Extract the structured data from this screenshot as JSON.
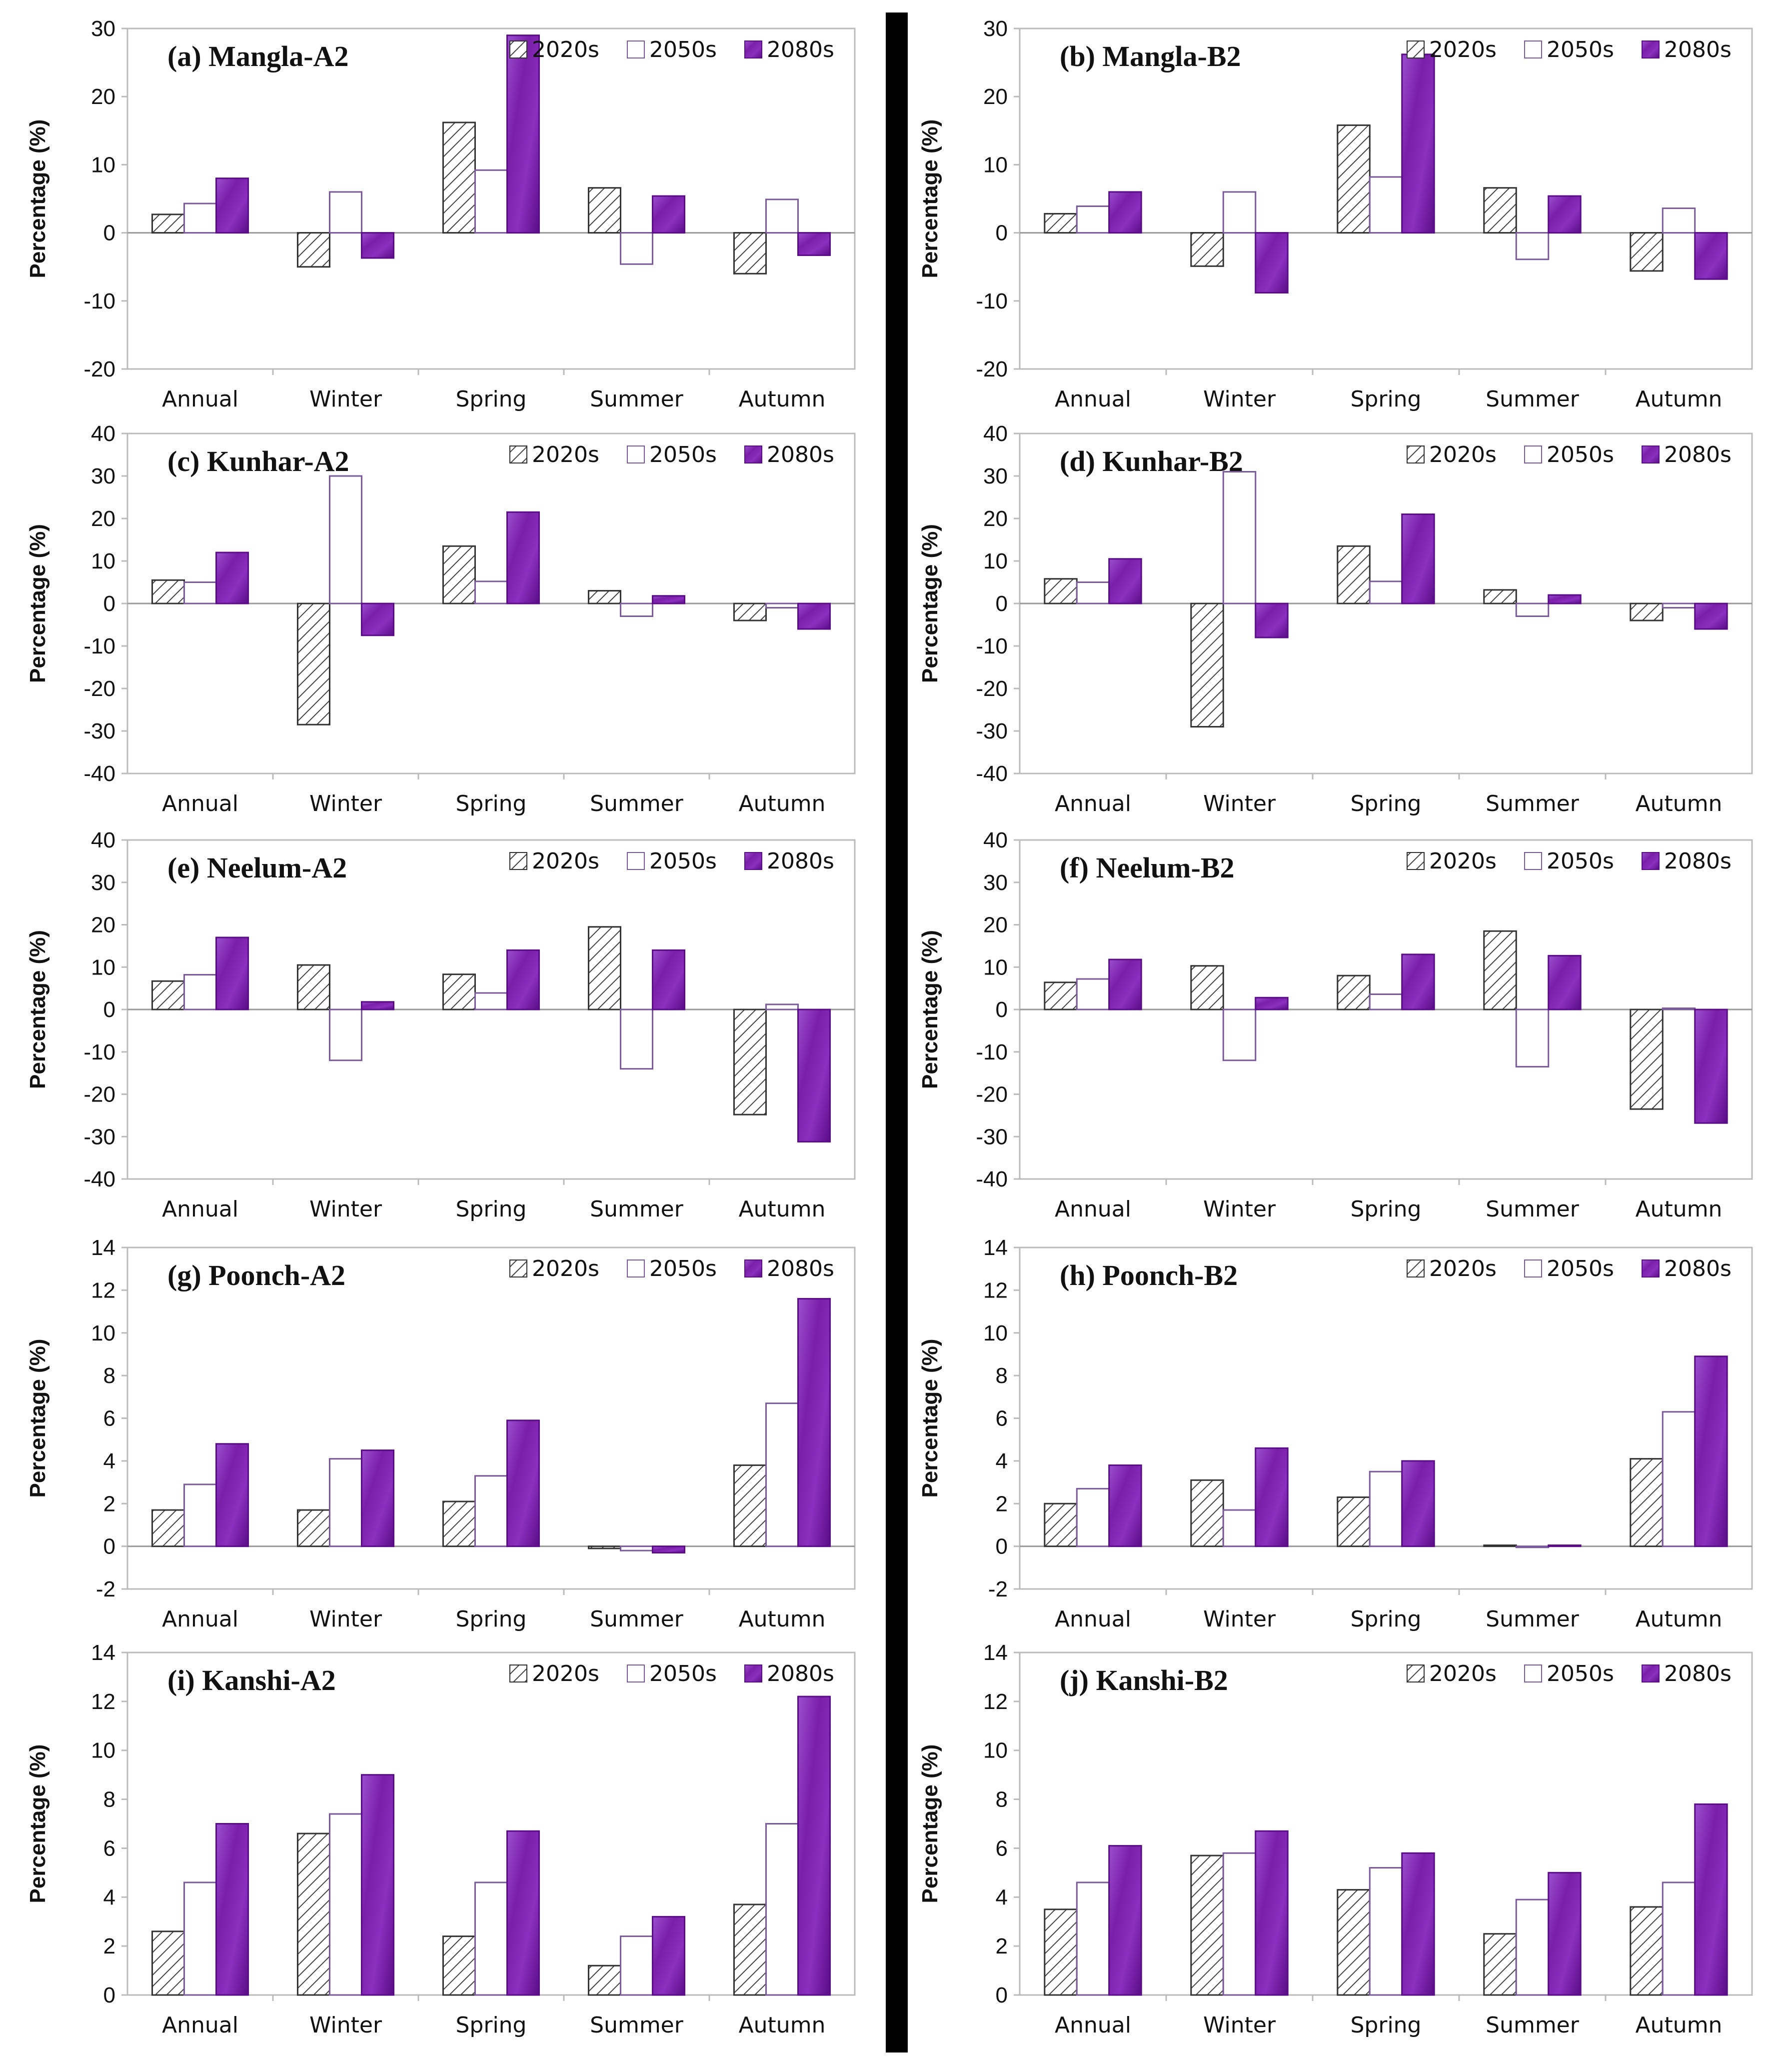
{
  "figure": {
    "legend": [
      "2020s",
      "2050s",
      "2080s"
    ],
    "categories": [
      "Annual",
      "Winter",
      "Spring",
      "Summer",
      "Autumn"
    ],
    "ylabel": "Percentage (%)",
    "colors": {
      "s2080": "#7a1fa8",
      "s2080_dark": "#5a0d86",
      "s2080_light": "#9b4fd0",
      "hatch": "#444444",
      "axis": "#bbbbbb",
      "divider": "#000000"
    }
  },
  "chart_data": [
    {
      "type": "bar",
      "title": "(a) Mangla-A2",
      "xlabel": "",
      "ylabel": "Percentage (%)",
      "ylim": [
        -20,
        30
      ],
      "yticks": [
        -20,
        -10,
        0,
        10,
        20,
        30
      ],
      "categories": [
        "Annual",
        "Winter",
        "Spring",
        "Summer",
        "Autumn"
      ],
      "series": [
        {
          "name": "2020s",
          "values": [
            2.7,
            -5.0,
            16.2,
            6.6,
            -6.0
          ]
        },
        {
          "name": "2050s",
          "values": [
            4.3,
            6.0,
            9.2,
            -4.6,
            4.9
          ]
        },
        {
          "name": "2080s",
          "values": [
            8.0,
            -3.7,
            29.0,
            5.4,
            -3.3
          ]
        }
      ]
    },
    {
      "type": "bar",
      "title": "(b) Mangla-B2",
      "xlabel": "",
      "ylabel": "Percentage (%)",
      "ylim": [
        -20,
        30
      ],
      "yticks": [
        -20,
        -10,
        0,
        10,
        20,
        30
      ],
      "categories": [
        "Annual",
        "Winter",
        "Spring",
        "Summer",
        "Autumn"
      ],
      "series": [
        {
          "name": "2020s",
          "values": [
            2.8,
            -4.9,
            15.8,
            6.6,
            -5.6
          ]
        },
        {
          "name": "2050s",
          "values": [
            3.9,
            6.0,
            8.2,
            -3.9,
            3.6
          ]
        },
        {
          "name": "2080s",
          "values": [
            6.0,
            -8.8,
            26.2,
            5.4,
            -6.8
          ]
        }
      ]
    },
    {
      "type": "bar",
      "title": "(c) Kunhar-A2",
      "xlabel": "",
      "ylabel": "Percentage (%)",
      "ylim": [
        -40,
        40
      ],
      "yticks": [
        -40,
        -30,
        -20,
        -10,
        0,
        10,
        20,
        30,
        40
      ],
      "categories": [
        "Annual",
        "Winter",
        "Spring",
        "Summer",
        "Autumn"
      ],
      "series": [
        {
          "name": "2020s",
          "values": [
            5.5,
            -28.5,
            13.5,
            3.0,
            -4.0
          ]
        },
        {
          "name": "2050s",
          "values": [
            5.0,
            30.0,
            5.2,
            -3.0,
            -1.0
          ]
        },
        {
          "name": "2080s",
          "values": [
            12.0,
            -7.5,
            21.5,
            1.8,
            -6.0
          ]
        }
      ]
    },
    {
      "type": "bar",
      "title": "(d) Kunhar-B2",
      "xlabel": "",
      "ylabel": "Percentage (%)",
      "ylim": [
        -40,
        40
      ],
      "yticks": [
        -40,
        -30,
        -20,
        -10,
        0,
        10,
        20,
        30,
        40
      ],
      "categories": [
        "Annual",
        "Winter",
        "Spring",
        "Summer",
        "Autumn"
      ],
      "series": [
        {
          "name": "2020s",
          "values": [
            5.8,
            -29.0,
            13.5,
            3.2,
            -4.0
          ]
        },
        {
          "name": "2050s",
          "values": [
            5.0,
            31.0,
            5.2,
            -3.0,
            -1.0
          ]
        },
        {
          "name": "2080s",
          "values": [
            10.5,
            -8.0,
            21.0,
            2.0,
            -6.0
          ]
        }
      ]
    },
    {
      "type": "bar",
      "title": "(e) Neelum-A2",
      "xlabel": "",
      "ylabel": "Percentage (%)",
      "ylim": [
        -40,
        40
      ],
      "yticks": [
        -40,
        -30,
        -20,
        -10,
        0,
        10,
        20,
        30,
        40
      ],
      "categories": [
        "Annual",
        "Winter",
        "Spring",
        "Summer",
        "Autumn"
      ],
      "series": [
        {
          "name": "2020s",
          "values": [
            6.7,
            10.5,
            8.3,
            19.5,
            -24.8
          ]
        },
        {
          "name": "2050s",
          "values": [
            8.2,
            -12.0,
            3.9,
            -14.0,
            1.2
          ]
        },
        {
          "name": "2080s",
          "values": [
            17.0,
            1.8,
            14.0,
            14.0,
            -31.2
          ]
        }
      ]
    },
    {
      "type": "bar",
      "title": "(f) Neelum-B2",
      "xlabel": "",
      "ylabel": "Percentage (%)",
      "ylim": [
        -40,
        40
      ],
      "yticks": [
        -40,
        -30,
        -20,
        -10,
        0,
        10,
        20,
        30,
        40
      ],
      "categories": [
        "Annual",
        "Winter",
        "Spring",
        "Summer",
        "Autumn"
      ],
      "series": [
        {
          "name": "2020s",
          "values": [
            6.4,
            10.3,
            8.0,
            18.5,
            -23.5
          ]
        },
        {
          "name": "2050s",
          "values": [
            7.2,
            -12.0,
            3.6,
            -13.5,
            0.3
          ]
        },
        {
          "name": "2080s",
          "values": [
            11.8,
            2.8,
            13.0,
            12.7,
            -26.8
          ]
        }
      ]
    },
    {
      "type": "bar",
      "title": "(g) Poonch-A2",
      "xlabel": "",
      "ylabel": "Percentage (%)",
      "ylim": [
        -2,
        14
      ],
      "yticks": [
        -2,
        0,
        2,
        4,
        6,
        8,
        10,
        12,
        14
      ],
      "categories": [
        "Annual",
        "Winter",
        "Spring",
        "Summer",
        "Autumn"
      ],
      "series": [
        {
          "name": "2020s",
          "values": [
            1.7,
            1.7,
            2.1,
            -0.1,
            3.8
          ]
        },
        {
          "name": "2050s",
          "values": [
            2.9,
            4.1,
            3.3,
            -0.2,
            6.7
          ]
        },
        {
          "name": "2080s",
          "values": [
            4.8,
            4.5,
            5.9,
            -0.3,
            11.6
          ]
        }
      ]
    },
    {
      "type": "bar",
      "title": "(h)  Poonch-B2",
      "xlabel": "",
      "ylabel": "Percentage (%)",
      "ylim": [
        -2,
        14
      ],
      "yticks": [
        -2,
        0,
        2,
        4,
        6,
        8,
        10,
        12,
        14
      ],
      "categories": [
        "Annual",
        "Winter",
        "Spring",
        "Summer",
        "Autumn"
      ],
      "series": [
        {
          "name": "2020s",
          "values": [
            2.0,
            3.1,
            2.3,
            0.05,
            4.1
          ]
        },
        {
          "name": "2050s",
          "values": [
            2.7,
            1.7,
            3.5,
            -0.05,
            6.3
          ]
        },
        {
          "name": "2080s",
          "values": [
            3.8,
            4.6,
            4.0,
            0.05,
            8.9
          ]
        }
      ]
    },
    {
      "type": "bar",
      "title": "(i)  Kanshi-A2",
      "xlabel": "",
      "ylabel": "Percentage (%)",
      "ylim": [
        0,
        14
      ],
      "yticks": [
        0,
        2,
        4,
        6,
        8,
        10,
        12,
        14
      ],
      "categories": [
        "Annual",
        "Winter",
        "Spring",
        "Summer",
        "Autumn"
      ],
      "series": [
        {
          "name": "2020s",
          "values": [
            2.6,
            6.6,
            2.4,
            1.2,
            3.7
          ]
        },
        {
          "name": "2050s",
          "values": [
            4.6,
            7.4,
            4.6,
            2.4,
            7.0
          ]
        },
        {
          "name": "2080s",
          "values": [
            7.0,
            9.0,
            6.7,
            3.2,
            12.2
          ]
        }
      ]
    },
    {
      "type": "bar",
      "title": "(j)  Kanshi-B2",
      "xlabel": "",
      "ylabel": "Percentage (%)",
      "ylim": [
        0,
        14
      ],
      "yticks": [
        0,
        2,
        4,
        6,
        8,
        10,
        12,
        14
      ],
      "categories": [
        "Annual",
        "Winter",
        "Spring",
        "Summer",
        "Autumn"
      ],
      "series": [
        {
          "name": "2020s",
          "values": [
            3.5,
            5.7,
            4.3,
            2.5,
            3.6
          ]
        },
        {
          "name": "2050s",
          "values": [
            4.6,
            5.8,
            5.2,
            3.9,
            4.6
          ]
        },
        {
          "name": "2080s",
          "values": [
            6.1,
            6.7,
            5.8,
            5.0,
            7.8
          ]
        }
      ]
    }
  ]
}
